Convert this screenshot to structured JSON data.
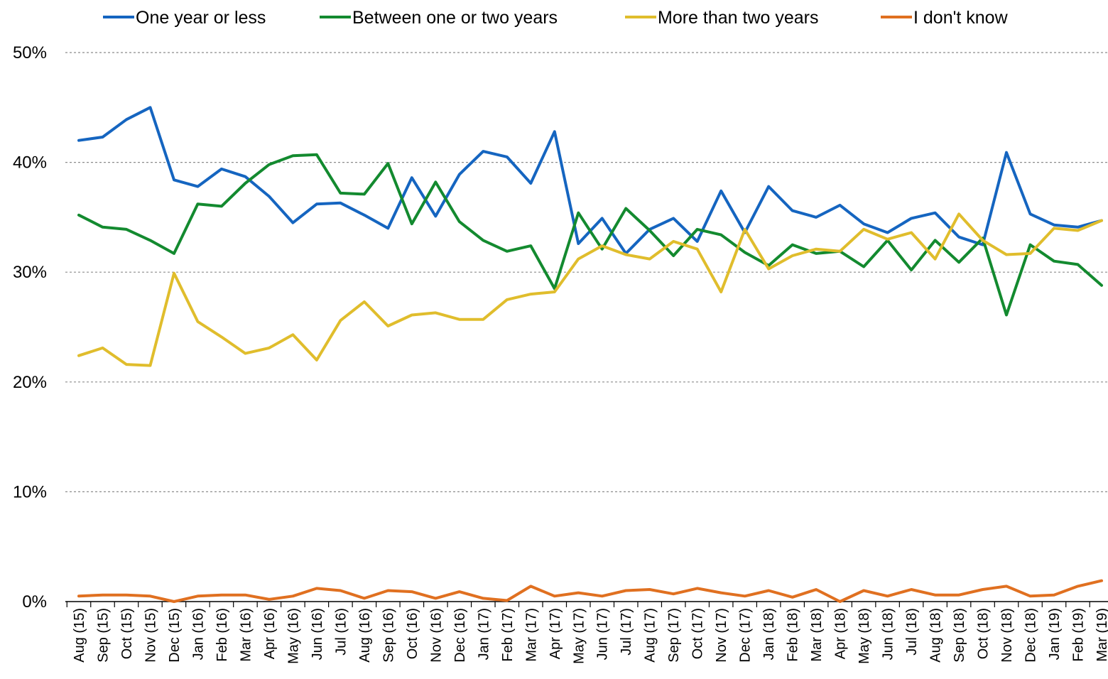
{
  "chart_data": {
    "type": "line",
    "title": "",
    "xlabel": "",
    "ylabel": "",
    "ylim": [
      0,
      50
    ],
    "yticks": [
      "0%",
      "10%",
      "20%",
      "30%",
      "40%",
      "50%"
    ],
    "ytick_values": [
      0,
      10,
      20,
      30,
      40,
      50
    ],
    "grid": "horizontal dotted",
    "legend_position": "top",
    "categories": [
      "Aug (15)",
      "Sep (15)",
      "Oct (15)",
      "Nov (15)",
      "Dec (15)",
      "Jan (16)",
      "Feb (16)",
      "Mar (16)",
      "Apr (16)",
      "May (16)",
      "Jun (16)",
      "Jul (16)",
      "Aug (16)",
      "Sep (16)",
      "Oct (16)",
      "Nov (16)",
      "Dec (16)",
      "Jan (17)",
      "Feb (17)",
      "Mar (17)",
      "Apr (17)",
      "May (17)",
      "Jun (17)",
      "Jul (17)",
      "Aug (17)",
      "Sep (17)",
      "Oct (17)",
      "Nov (17)",
      "Dec (17)",
      "Jan (18)",
      "Feb (18)",
      "Mar (18)",
      "Apr (18)",
      "May (18)",
      "Jun (18)",
      "Jul (18)",
      "Aug (18)",
      "Sep (18)",
      "Oct (18)",
      "Nov (18)",
      "Dec (18)",
      "Jan (19)",
      "Feb (19)",
      "Mar (19)"
    ],
    "series": [
      {
        "name": "One year or less",
        "color": "#1565c0",
        "values": [
          42.0,
          42.3,
          43.9,
          45.0,
          38.4,
          37.8,
          39.4,
          38.7,
          36.9,
          34.5,
          36.2,
          36.3,
          35.2,
          34.0,
          38.6,
          35.1,
          38.9,
          41.0,
          40.5,
          38.1,
          42.8,
          32.6,
          34.9,
          31.7,
          33.9,
          34.9,
          32.8,
          37.4,
          33.6,
          37.8,
          35.6,
          35.0,
          36.1,
          34.4,
          33.6,
          34.9,
          35.4,
          33.2,
          32.5,
          40.9,
          35.3,
          34.3,
          34.1,
          34.7
        ]
      },
      {
        "name": "Between one or two years",
        "color": "#138a2f",
        "values": [
          35.2,
          34.1,
          33.9,
          32.9,
          31.7,
          36.2,
          36.0,
          38.1,
          39.8,
          40.6,
          40.7,
          37.2,
          37.1,
          39.9,
          34.4,
          38.2,
          34.6,
          32.9,
          31.9,
          32.4,
          28.5,
          35.4,
          32.1,
          35.8,
          33.8,
          31.5,
          33.9,
          33.4,
          31.8,
          30.6,
          32.5,
          31.7,
          31.9,
          30.5,
          32.9,
          30.2,
          32.9,
          30.9,
          33.1,
          26.1,
          32.5,
          31.0,
          30.7,
          28.8
        ]
      },
      {
        "name": "More than two years",
        "color": "#e0bd2c",
        "values": [
          22.4,
          23.1,
          21.6,
          21.5,
          29.9,
          25.5,
          24.1,
          22.6,
          23.1,
          24.3,
          22.0,
          25.6,
          27.3,
          25.1,
          26.1,
          26.3,
          25.7,
          25.7,
          27.5,
          28.0,
          28.2,
          31.2,
          32.4,
          31.6,
          31.2,
          32.8,
          32.1,
          28.2,
          33.9,
          30.3,
          31.5,
          32.1,
          31.9,
          33.9,
          33.0,
          33.6,
          31.2,
          35.3,
          32.9,
          31.6,
          31.7,
          34.0,
          33.8,
          34.7
        ]
      },
      {
        "name": "I don't know",
        "color": "#e07020",
        "values": [
          0.5,
          0.6,
          0.6,
          0.5,
          0.0,
          0.5,
          0.6,
          0.6,
          0.2,
          0.5,
          1.2,
          1.0,
          0.3,
          1.0,
          0.9,
          0.3,
          0.9,
          0.3,
          0.1,
          1.4,
          0.5,
          0.8,
          0.5,
          1.0,
          1.1,
          0.7,
          1.2,
          0.8,
          0.5,
          1.0,
          0.4,
          1.1,
          0.0,
          1.0,
          0.5,
          1.1,
          0.6,
          0.6,
          1.1,
          1.4,
          0.5,
          0.6,
          1.4,
          1.9
        ]
      }
    ]
  }
}
